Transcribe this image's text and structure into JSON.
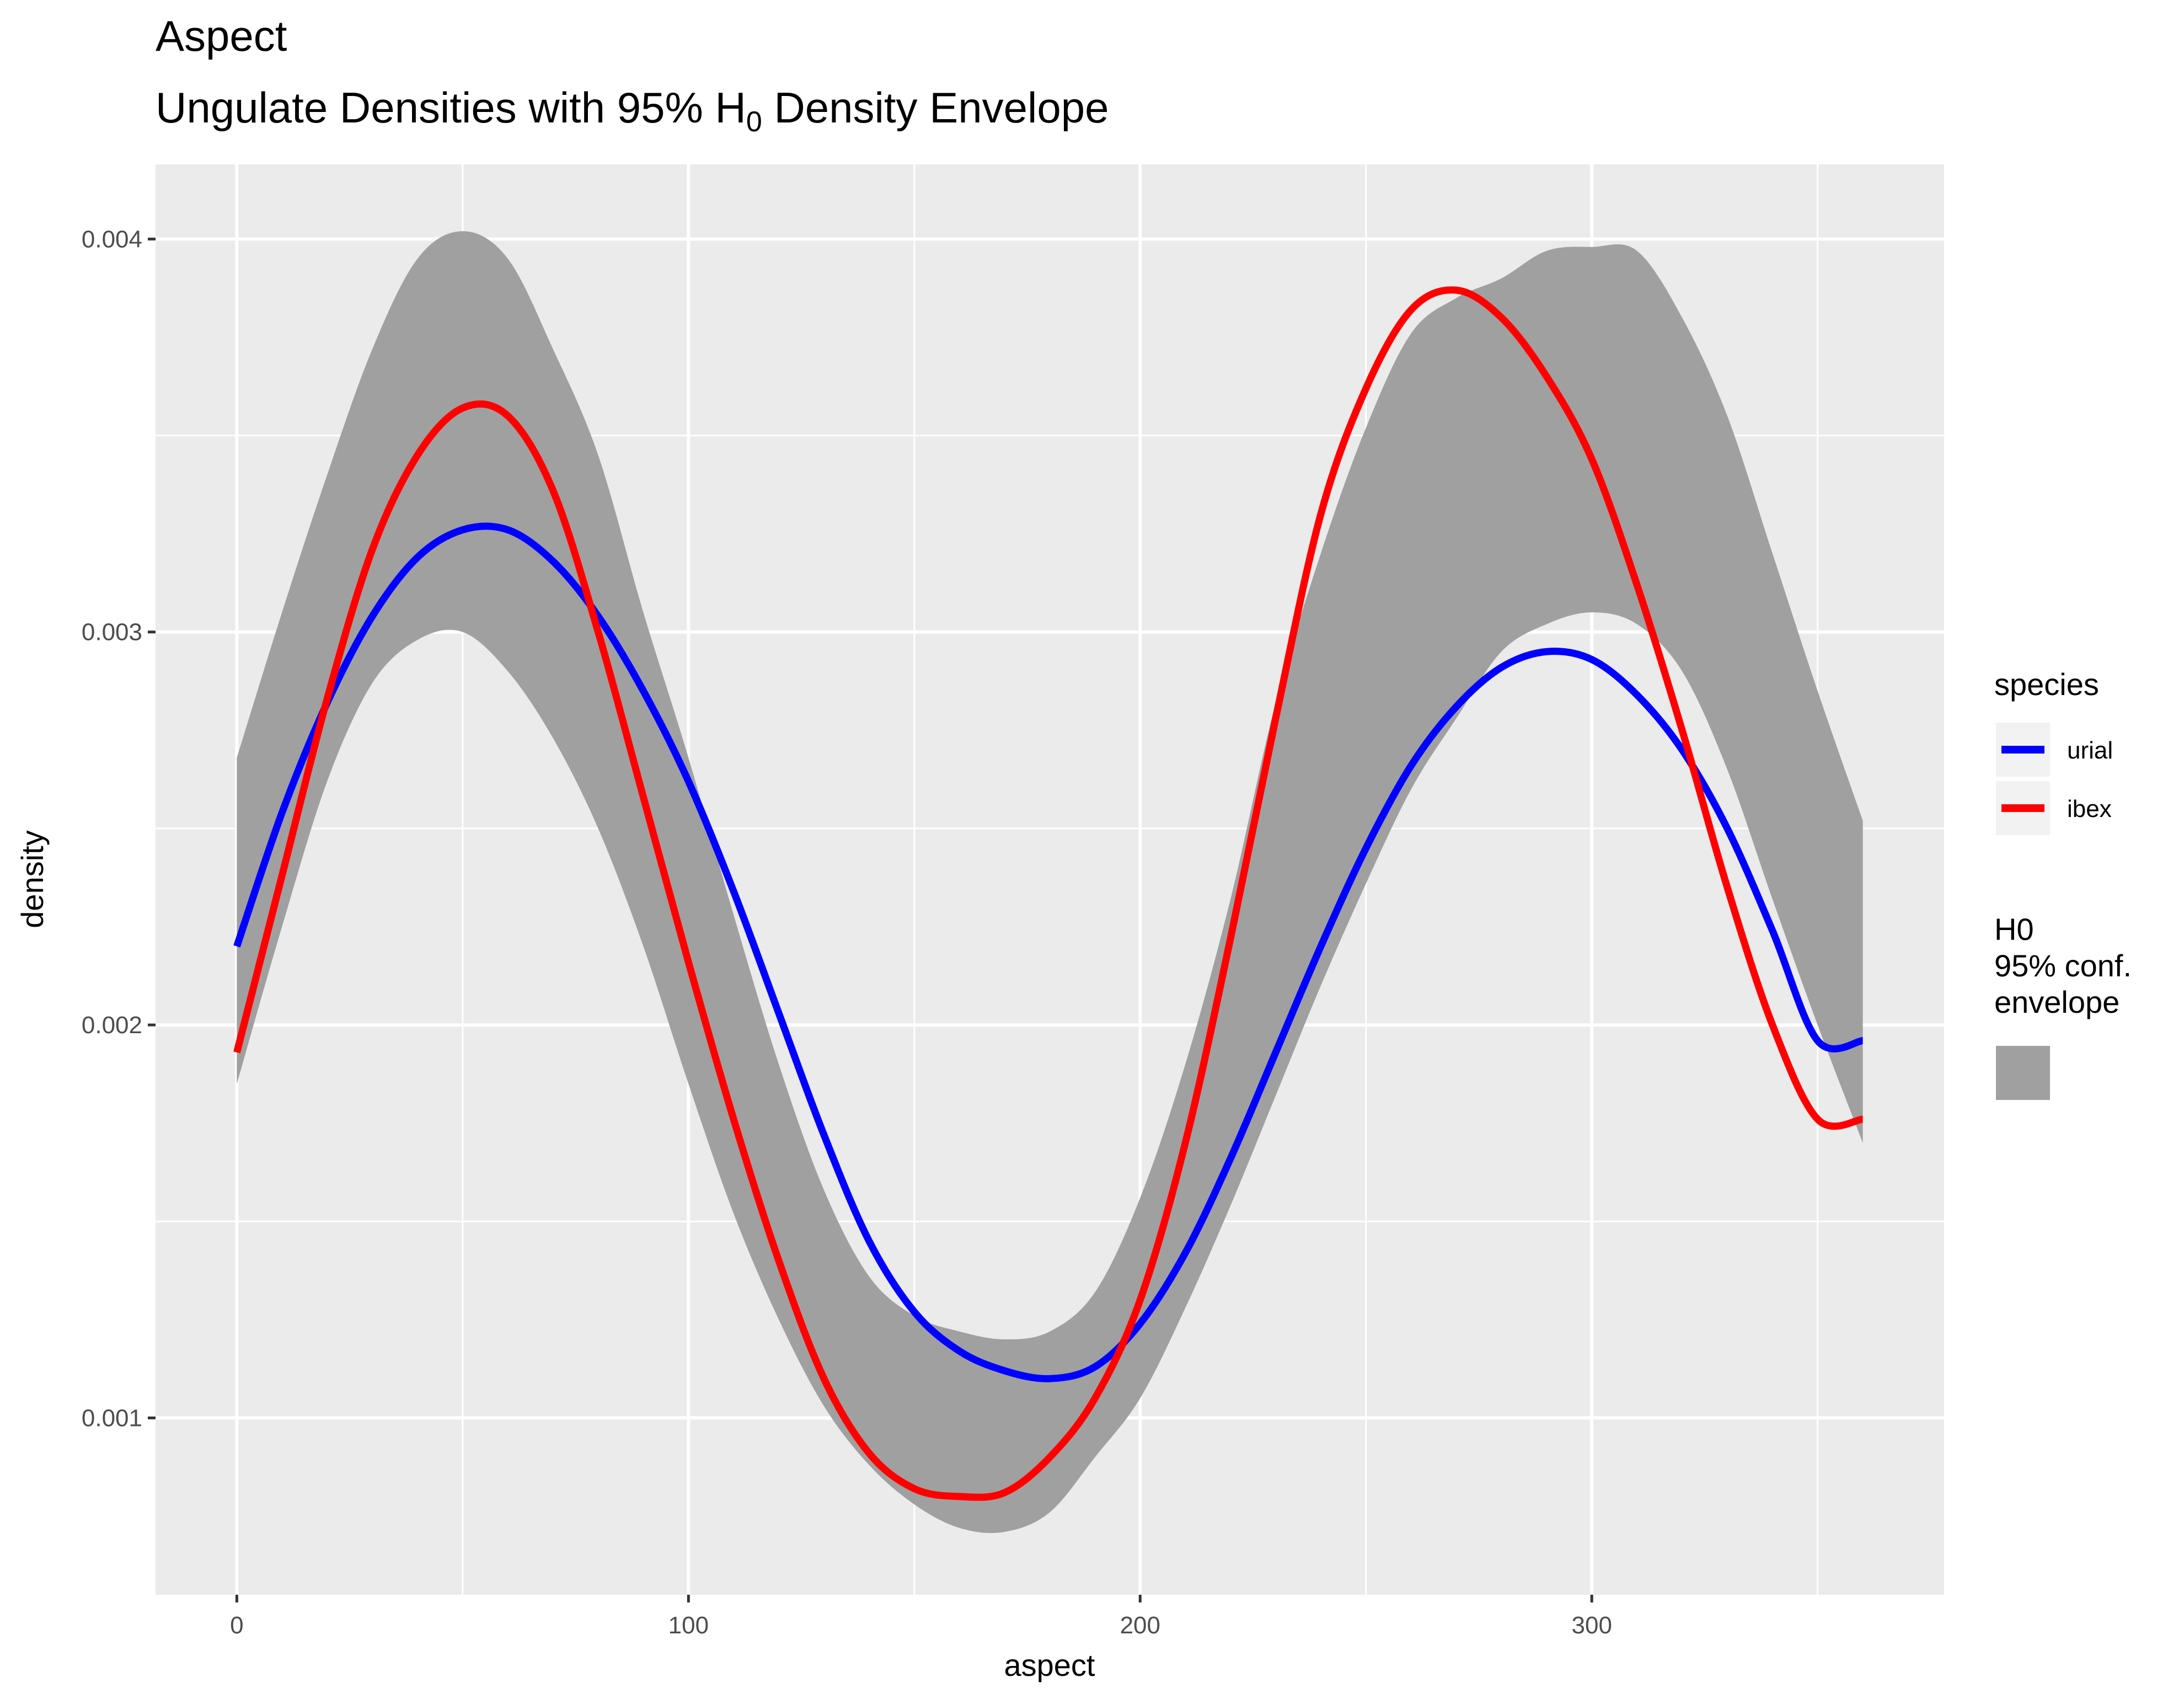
{
  "chart_data": {
    "type": "line",
    "title": "Aspect",
    "subtitle": {
      "text": "Ungulate Densities with 95% H",
      "subscript": "0",
      "suffix": " Density Envelope"
    },
    "xlabel": "aspect",
    "ylabel": "density",
    "xlim": [
      -18,
      378
    ],
    "ylim": [
      0.00055,
      0.00419
    ],
    "xticks": [
      0,
      100,
      200,
      300
    ],
    "xtick_labels": [
      "0",
      "100",
      "200",
      "300"
    ],
    "yticks": [
      0.001,
      0.002,
      0.003,
      0.004
    ],
    "ytick_labels": [
      "0.001",
      "0.002",
      "0.003",
      "0.004"
    ],
    "grid": true,
    "legend_position": "right",
    "colors": {
      "panel": "#ebebeb",
      "grid": "#ffffff",
      "envelope": "#a0a0a0",
      "urial": "#0000ff",
      "ibex": "#ff0000"
    },
    "legend": {
      "species_title": "species",
      "species": [
        {
          "name": "urial",
          "color": "#0000ff"
        },
        {
          "name": "ibex",
          "color": "#ff0000"
        }
      ],
      "envelope_title": [
        "H0",
        "95% conf.",
        "envelope"
      ]
    },
    "x": [
      0,
      10,
      20,
      30,
      40,
      50,
      60,
      70,
      80,
      90,
      100,
      110,
      120,
      130,
      140,
      150,
      160,
      170,
      180,
      190,
      200,
      210,
      220,
      230,
      240,
      250,
      260,
      270,
      280,
      290,
      300,
      310,
      320,
      330,
      340,
      350,
      360
    ],
    "envelope": {
      "upper": [
        0.00268,
        0.00305,
        0.0034,
        0.00372,
        0.00395,
        0.00402,
        0.00395,
        0.00372,
        0.00345,
        0.00305,
        0.00268,
        0.00228,
        0.0019,
        0.00158,
        0.00136,
        0.00126,
        0.00122,
        0.0012,
        0.00122,
        0.00132,
        0.00156,
        0.0019,
        0.00232,
        0.00282,
        0.0032,
        0.00352,
        0.00376,
        0.00385,
        0.0039,
        0.00397,
        0.00398,
        0.00397,
        0.0038,
        0.00355,
        0.0032,
        0.00285,
        0.00252
      ],
      "lower": [
        0.00185,
        0.00225,
        0.00262,
        0.00287,
        0.00298,
        0.003,
        0.0029,
        0.00273,
        0.0025,
        0.0022,
        0.00185,
        0.00152,
        0.00125,
        0.00103,
        0.00088,
        0.00078,
        0.00072,
        0.00071,
        0.00076,
        0.0009,
        0.00105,
        0.00128,
        0.00154,
        0.00182,
        0.0021,
        0.00236,
        0.0026,
        0.00278,
        0.00295,
        0.00302,
        0.00305,
        0.00302,
        0.0029,
        0.00265,
        0.00232,
        0.002,
        0.0017
      ]
    },
    "series": [
      {
        "name": "urial",
        "color": "#0000ff",
        "values": [
          0.0022,
          0.00254,
          0.00282,
          0.00304,
          0.00319,
          0.00326,
          0.00326,
          0.00318,
          0.00304,
          0.00285,
          0.00262,
          0.00234,
          0.00203,
          0.00172,
          0.00145,
          0.00127,
          0.00117,
          0.00112,
          0.0011,
          0.00113,
          0.00124,
          0.00142,
          0.00166,
          0.00193,
          0.0022,
          0.00245,
          0.00266,
          0.00281,
          0.00291,
          0.00295,
          0.00293,
          0.00284,
          0.0027,
          0.0025,
          0.00224,
          0.00196,
          0.00196
        ]
      },
      {
        "name": "ibex",
        "color": "#ff0000",
        "values": [
          0.00193,
          0.00238,
          0.00283,
          0.00321,
          0.00345,
          0.00357,
          0.00355,
          0.00336,
          0.003,
          0.00258,
          0.00216,
          0.00176,
          0.0014,
          0.0011,
          0.00091,
          0.00082,
          0.0008,
          0.00081,
          0.0009,
          0.00105,
          0.0013,
          0.0017,
          0.00222,
          0.00278,
          0.0033,
          0.00362,
          0.00382,
          0.00387,
          0.0038,
          0.00365,
          0.00344,
          0.00312,
          0.00275,
          0.00235,
          0.002,
          0.00176,
          0.00176
        ]
      }
    ]
  }
}
